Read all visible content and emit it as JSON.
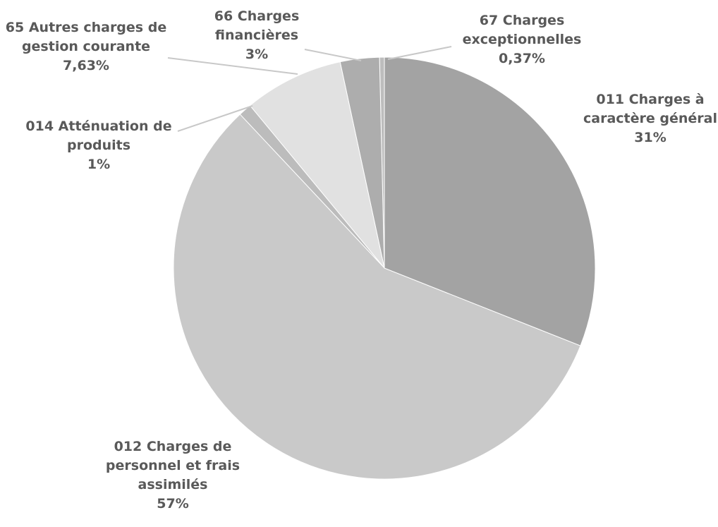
{
  "chart_data": {
    "type": "pie",
    "categories": [
      "011 Charges à caractère général",
      "012 Charges de personnel et frais assimilés",
      "014 Atténuation de produits",
      "65 Autres charges de gestion courante",
      "66 Charges financières",
      "67 Charges exceptionnelles"
    ],
    "values": [
      31,
      57,
      1,
      7.63,
      3,
      0.37
    ],
    "value_labels": [
      "31%",
      "57%",
      "1%",
      "7,63%",
      "3%",
      "0,37%"
    ],
    "colors": [
      "#a3a3a3",
      "#c9c9c9",
      "#bcbcbc",
      "#e1e1e1",
      "#adadad",
      "#bdbdbd"
    ]
  }
}
